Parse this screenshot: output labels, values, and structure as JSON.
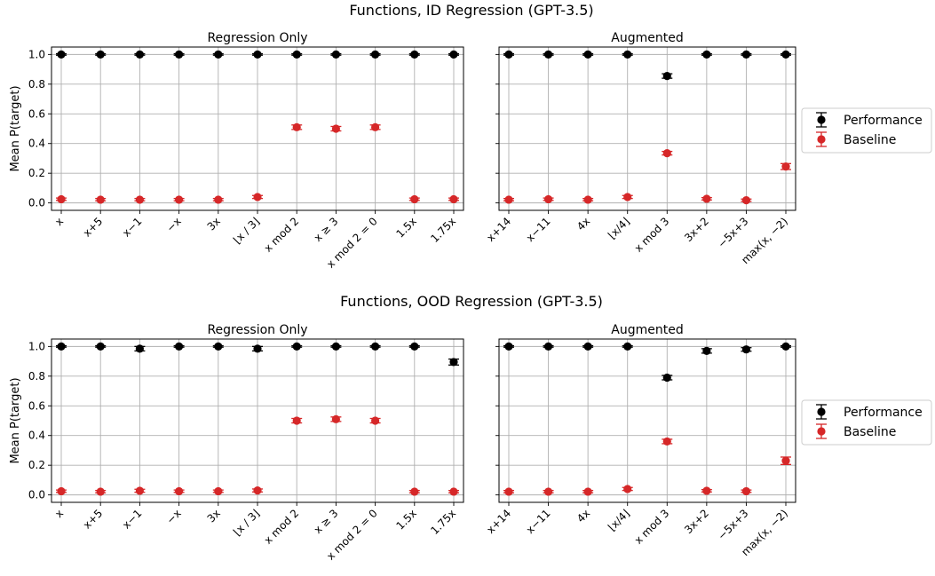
{
  "figure": {
    "row_titles": [
      "Functions, ID Regression (GPT-3.5)",
      "Functions, OOD Regression (GPT-3.5)"
    ],
    "ylabel": "Mean P(target)",
    "yticks": [
      "0.0",
      "0.2",
      "0.4",
      "0.6",
      "0.8",
      "1.0"
    ],
    "legend": [
      "Performance",
      "Baseline"
    ],
    "colors": {
      "performance": "#000000",
      "baseline": "#d62728",
      "grid": "#b0b0b0"
    }
  },
  "chart_data": [
    {
      "type": "scatter",
      "title": "Regression Only",
      "categories": [
        "x",
        "x+5",
        "x−1",
        "−x",
        "3x",
        "⌊x / 3⌋",
        "x mod 2",
        "x ≥ 3",
        "x mod 2 = 0",
        "1.5x",
        "1.75x"
      ],
      "ylim": [
        -0.05,
        1.05
      ],
      "ylabel": "Mean P(target)",
      "series": [
        {
          "name": "Performance",
          "values": [
            1.0,
            1.0,
            1.0,
            1.0,
            1.0,
            1.0,
            1.0,
            1.0,
            1.0,
            1.0,
            1.0
          ],
          "err": [
            0.005,
            0.005,
            0.005,
            0.005,
            0.005,
            0.005,
            0.005,
            0.005,
            0.005,
            0.005,
            0.005
          ]
        },
        {
          "name": "Baseline",
          "values": [
            0.025,
            0.022,
            0.022,
            0.022,
            0.022,
            0.04,
            0.51,
            0.5,
            0.51,
            0.025,
            0.025
          ],
          "err": [
            0.008,
            0.008,
            0.008,
            0.008,
            0.008,
            0.01,
            0.015,
            0.015,
            0.015,
            0.008,
            0.008
          ]
        }
      ],
      "grid": true
    },
    {
      "type": "scatter",
      "title": "Augmented",
      "categories": [
        "x+14",
        "x−11",
        "4x",
        "⌊x/4⌋",
        "x mod 3",
        "3x+2",
        "−5x+3",
        "max(x, −2)"
      ],
      "ylim": [
        -0.05,
        1.05
      ],
      "series": [
        {
          "name": "Performance",
          "values": [
            1.0,
            1.0,
            1.0,
            1.0,
            0.855,
            1.0,
            1.0,
            1.0
          ],
          "err": [
            0.005,
            0.005,
            0.005,
            0.005,
            0.015,
            0.005,
            0.005,
            0.005
          ]
        },
        {
          "name": "Baseline",
          "values": [
            0.022,
            0.025,
            0.022,
            0.04,
            0.335,
            0.028,
            0.018,
            0.245
          ],
          "err": [
            0.008,
            0.008,
            0.008,
            0.01,
            0.012,
            0.008,
            0.008,
            0.02
          ]
        }
      ],
      "grid": true
    },
    {
      "type": "scatter",
      "title": "Regression Only",
      "categories": [
        "x",
        "x+5",
        "x−1",
        "−x",
        "3x",
        "⌊x / 3⌋",
        "x mod 2",
        "x ≥ 3",
        "x mod 2 = 0",
        "1.5x",
        "1.75x"
      ],
      "ylim": [
        -0.05,
        1.05
      ],
      "ylabel": "Mean P(target)",
      "series": [
        {
          "name": "Performance",
          "values": [
            1.0,
            1.0,
            0.985,
            1.0,
            1.0,
            0.985,
            1.0,
            1.0,
            1.0,
            1.0,
            0.895
          ],
          "err": [
            0.005,
            0.005,
            0.015,
            0.005,
            0.005,
            0.015,
            0.005,
            0.005,
            0.005,
            0.005,
            0.02
          ]
        },
        {
          "name": "Baseline",
          "values": [
            0.025,
            0.022,
            0.028,
            0.025,
            0.025,
            0.03,
            0.5,
            0.51,
            0.5,
            0.022,
            0.022
          ],
          "err": [
            0.008,
            0.008,
            0.01,
            0.008,
            0.008,
            0.01,
            0.015,
            0.015,
            0.015,
            0.008,
            0.008
          ]
        }
      ],
      "grid": true
    },
    {
      "type": "scatter",
      "title": "Augmented",
      "categories": [
        "x+14",
        "x−11",
        "4x",
        "⌊x/4⌋",
        "x mod 3",
        "3x+2",
        "−5x+3",
        "max(x, −2)"
      ],
      "ylim": [
        -0.05,
        1.05
      ],
      "series": [
        {
          "name": "Performance",
          "values": [
            1.0,
            1.0,
            1.0,
            1.0,
            0.79,
            0.97,
            0.98,
            1.0
          ],
          "err": [
            0.005,
            0.005,
            0.005,
            0.005,
            0.015,
            0.015,
            0.012,
            0.005
          ]
        },
        {
          "name": "Baseline",
          "values": [
            0.022,
            0.022,
            0.022,
            0.04,
            0.36,
            0.028,
            0.025,
            0.23
          ],
          "err": [
            0.008,
            0.008,
            0.008,
            0.01,
            0.015,
            0.008,
            0.008,
            0.025
          ]
        }
      ],
      "grid": true
    }
  ]
}
